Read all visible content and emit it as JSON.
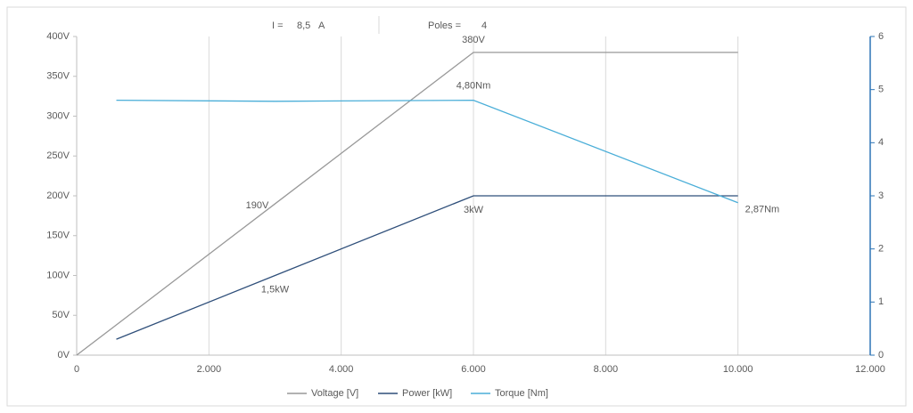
{
  "chart_data": {
    "type": "line",
    "header": [
      "I =",
      "8,5",
      "A",
      "Poles =",
      "4"
    ],
    "xlim": [
      0,
      12000
    ],
    "xticks": [
      0,
      {
        "value": 2000,
        "label": "2.000"
      },
      {
        "value": 4000,
        "label": "4.000"
      },
      {
        "value": 6000,
        "label": "6.000"
      },
      {
        "value": 8000,
        "label": "8.000"
      },
      {
        "value": 10000,
        "label": "10.000"
      },
      {
        "value": 12000,
        "label": "12.000"
      }
    ],
    "ylim": [
      0,
      400
    ],
    "yticks": [
      {
        "value": 0,
        "label": "0V"
      },
      {
        "value": 50,
        "label": "50V"
      },
      {
        "value": 100,
        "label": "100V"
      },
      {
        "value": 150,
        "label": "150V"
      },
      {
        "value": 200,
        "label": "200V"
      },
      {
        "value": 250,
        "label": "250V"
      },
      {
        "value": 300,
        "label": "300V"
      },
      {
        "value": 350,
        "label": "350V"
      },
      {
        "value": 400,
        "label": "400V"
      }
    ],
    "y2lim": [
      0,
      6
    ],
    "y2ticks": [
      0,
      1,
      2,
      3,
      4,
      5,
      6
    ],
    "grid": "x",
    "legend": "bottom",
    "series": [
      {
        "name": "Voltage [V]",
        "color": "#999999",
        "x": [
          0,
          3000,
          6000,
          10000
        ],
        "values": [
          0,
          190,
          380,
          380
        ],
        "value_labels": [
          null,
          "190V",
          "380V",
          null
        ]
      },
      {
        "name": "Power [kW]",
        "color": "#2f4f7a",
        "axis": "y2",
        "x": [
          600,
          3000,
          6000,
          10000
        ],
        "values": [
          0.3,
          1.5,
          3,
          3
        ],
        "value_labels": [
          null,
          "1,5kW",
          "3kW",
          null
        ]
      },
      {
        "name": "Torque [Nm]",
        "color": "#4aaed8",
        "axis": "y2",
        "x": [
          600,
          3000,
          6000,
          10000
        ],
        "values": [
          4.8,
          4.78,
          4.8,
          2.87
        ],
        "value_labels": [
          null,
          null,
          "4,80Nm",
          "2,87Nm"
        ]
      }
    ]
  }
}
